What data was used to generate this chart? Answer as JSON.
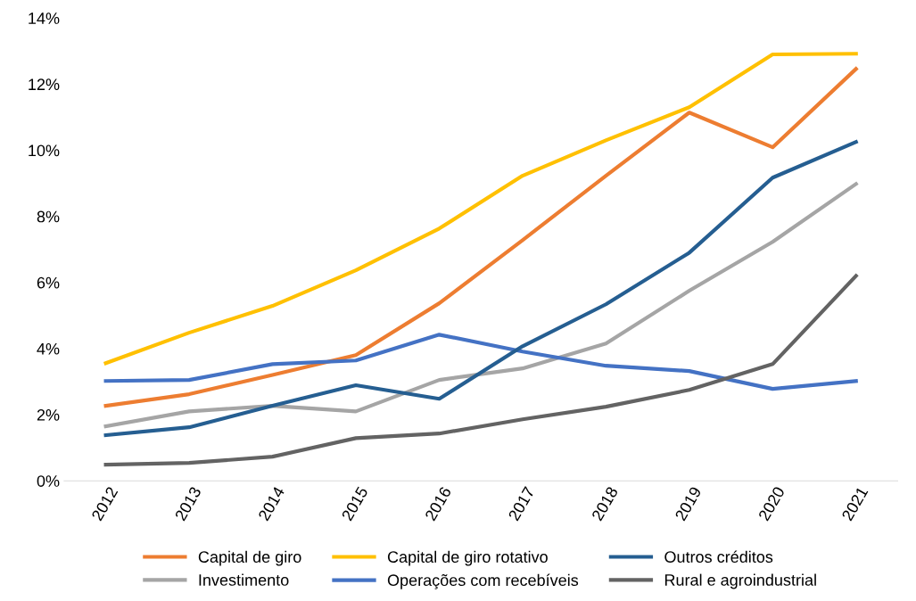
{
  "chart_data": {
    "type": "line",
    "categories": [
      "2012",
      "2013",
      "2014",
      "2015",
      "2016",
      "2017",
      "2018",
      "2019",
      "2020",
      "2021"
    ],
    "ylim": [
      0,
      14
    ],
    "yticks": [
      {
        "value": 0,
        "label": "0%"
      },
      {
        "value": 2,
        "label": "2%"
      },
      {
        "value": 4,
        "label": "4%"
      },
      {
        "value": 6,
        "label": "6%"
      },
      {
        "value": 8,
        "label": "8%"
      },
      {
        "value": 10,
        "label": "10%"
      },
      {
        "value": 12,
        "label": "12%"
      },
      {
        "value": 14,
        "label": "14%"
      }
    ],
    "grid": false,
    "legend": "bottom",
    "marker": "none",
    "line_style": "solid",
    "series": [
      {
        "name": "Capital de giro",
        "color": "#ed7d31",
        "values": [
          2.27,
          2.62,
          3.2,
          3.8,
          5.37,
          7.28,
          9.23,
          11.14,
          10.09,
          12.46
        ]
      },
      {
        "name": "Investimento",
        "color": "#a5a5a5",
        "values": [
          1.65,
          2.1,
          2.27,
          2.1,
          3.05,
          3.4,
          4.15,
          5.75,
          7.23,
          8.98
        ]
      },
      {
        "name": "Capital de giro rotativo",
        "color": "#ffc000",
        "values": [
          3.56,
          4.48,
          5.29,
          6.37,
          7.63,
          9.23,
          10.3,
          11.3,
          12.9,
          12.92
        ]
      },
      {
        "name": "Operações com recebíveis",
        "color": "#4472c4",
        "values": [
          3.02,
          3.05,
          3.53,
          3.64,
          4.42,
          3.91,
          3.48,
          3.32,
          2.78,
          3.02
        ]
      },
      {
        "name": "Outros créditos",
        "color": "#255e91",
        "values": [
          1.38,
          1.62,
          2.27,
          2.89,
          2.48,
          4.07,
          5.34,
          6.9,
          9.17,
          10.25
        ]
      },
      {
        "name": "Rural e agroindustrial",
        "color": "#636363",
        "values": [
          0.49,
          0.54,
          0.73,
          1.29,
          1.43,
          1.86,
          2.24,
          2.75,
          3.53,
          6.2
        ]
      }
    ]
  }
}
